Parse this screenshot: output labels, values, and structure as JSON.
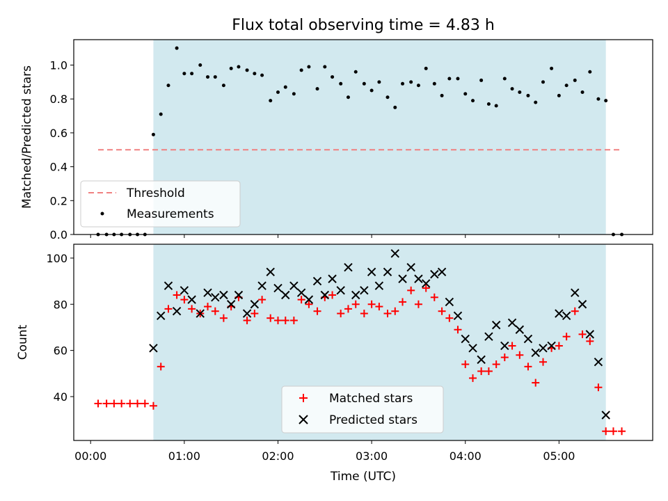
{
  "chart_data": {
    "title": "Flux total observing time = 4.83 h",
    "xlabel": "Time (UTC)",
    "x_unit": "hours (UTC)",
    "xlim": [
      -0.18,
      6.0
    ],
    "x_ticks": [
      {
        "value": 0,
        "label": "00:00"
      },
      {
        "value": 1,
        "label": "01:00"
      },
      {
        "value": 2,
        "label": "02:00"
      },
      {
        "value": 3,
        "label": "03:00"
      },
      {
        "value": 4,
        "label": "04:00"
      },
      {
        "value": 5,
        "label": "05:00"
      }
    ],
    "observing_window": {
      "start": 0.67,
      "end": 5.5,
      "color": "#d2e9ef"
    },
    "top": {
      "type": "scatter",
      "ylabel": "Matched/Predicted stars",
      "ylim": [
        0,
        1.15
      ],
      "y_ticks": [
        0.0,
        0.2,
        0.4,
        0.6,
        0.8,
        1.0
      ],
      "y_tick_labels": [
        "0.0",
        "0.2",
        "0.4",
        "0.6",
        "0.8",
        "1.0"
      ],
      "threshold": {
        "name": "Threshold",
        "value": 0.5,
        "x_start": 0.08,
        "x_end": 5.67,
        "color": "#f08080"
      },
      "series": {
        "name": "Measurements",
        "color": "#000000",
        "x": [
          0.08,
          0.17,
          0.25,
          0.33,
          0.42,
          0.5,
          0.58,
          0.67,
          0.75,
          0.83,
          0.92,
          1.0,
          1.08,
          1.17,
          1.25,
          1.33,
          1.42,
          1.5,
          1.58,
          1.67,
          1.75,
          1.83,
          1.92,
          2.0,
          2.08,
          2.17,
          2.25,
          2.33,
          2.42,
          2.5,
          2.58,
          2.67,
          2.75,
          2.83,
          2.92,
          3.0,
          3.08,
          3.17,
          3.25,
          3.33,
          3.42,
          3.5,
          3.58,
          3.67,
          3.75,
          3.83,
          3.92,
          4.0,
          4.08,
          4.17,
          4.25,
          4.33,
          4.42,
          4.5,
          4.58,
          4.67,
          4.75,
          4.83,
          4.92,
          5.0,
          5.08,
          5.17,
          5.25,
          5.33,
          5.42,
          5.5,
          5.58,
          5.67
        ],
        "y": [
          0,
          0,
          0,
          0,
          0,
          0,
          0,
          0.59,
          0.71,
          0.88,
          1.1,
          0.95,
          0.95,
          1.0,
          0.93,
          0.93,
          0.88,
          0.98,
          0.99,
          0.97,
          0.95,
          0.94,
          0.79,
          0.84,
          0.87,
          0.83,
          0.97,
          0.99,
          0.86,
          0.99,
          0.93,
          0.89,
          0.81,
          0.96,
          0.89,
          0.85,
          0.9,
          0.81,
          0.75,
          0.89,
          0.9,
          0.88,
          0.98,
          0.89,
          0.82,
          0.92,
          0.92,
          0.83,
          0.79,
          0.91,
          0.77,
          0.76,
          0.92,
          0.86,
          0.84,
          0.82,
          0.78,
          0.9,
          0.98,
          0.82,
          0.88,
          0.91,
          0.84,
          0.96,
          0.8,
          0.79,
          0,
          0
        ]
      }
    },
    "bottom": {
      "type": "scatter",
      "ylabel": "Count",
      "ylim": [
        21,
        106
      ],
      "y_ticks": [
        40,
        60,
        80,
        100
      ],
      "y_tick_labels": [
        "40",
        "60",
        "80",
        "100"
      ],
      "series": [
        {
          "name": "Matched stars",
          "marker": "plus",
          "color": "#ff0000",
          "x": [
            0.08,
            0.17,
            0.25,
            0.33,
            0.42,
            0.5,
            0.58,
            0.67,
            0.75,
            0.83,
            0.92,
            1.0,
            1.08,
            1.17,
            1.25,
            1.33,
            1.42,
            1.5,
            1.58,
            1.67,
            1.75,
            1.83,
            1.92,
            2.0,
            2.08,
            2.17,
            2.25,
            2.33,
            2.42,
            2.5,
            2.58,
            2.67,
            2.75,
            2.83,
            2.92,
            3.0,
            3.08,
            3.17,
            3.25,
            3.33,
            3.42,
            3.5,
            3.58,
            3.67,
            3.75,
            3.83,
            3.92,
            4.0,
            4.08,
            4.17,
            4.25,
            4.33,
            4.42,
            4.5,
            4.58,
            4.67,
            4.75,
            4.83,
            4.92,
            5.0,
            5.08,
            5.17,
            5.25,
            5.33,
            5.42,
            5.5,
            5.58,
            5.67
          ],
          "y": [
            37,
            37,
            37,
            37,
            37,
            37,
            37,
            36,
            53,
            78,
            84,
            82,
            78,
            76,
            79,
            77,
            74,
            79,
            83,
            73,
            76,
            82,
            74,
            73,
            73,
            73,
            82,
            80,
            77,
            83,
            84,
            76,
            78,
            80,
            76,
            80,
            79,
            76,
            77,
            81,
            86,
            80,
            87,
            83,
            77,
            74,
            69,
            54,
            48,
            51,
            51,
            54,
            57,
            62,
            58,
            53,
            46,
            55,
            61,
            62,
            66,
            77,
            67,
            64,
            44,
            25,
            25,
            25
          ]
        },
        {
          "name": "Predicted stars",
          "marker": "x",
          "color": "#000000",
          "x": [
            0.67,
            0.75,
            0.83,
            0.92,
            1.0,
            1.08,
            1.17,
            1.25,
            1.33,
            1.42,
            1.5,
            1.58,
            1.67,
            1.75,
            1.83,
            1.92,
            2.0,
            2.08,
            2.17,
            2.25,
            2.33,
            2.42,
            2.5,
            2.58,
            2.67,
            2.75,
            2.83,
            2.92,
            3.0,
            3.08,
            3.17,
            3.25,
            3.33,
            3.42,
            3.5,
            3.58,
            3.67,
            3.75,
            3.83,
            3.92,
            4.0,
            4.08,
            4.17,
            4.25,
            4.33,
            4.42,
            4.5,
            4.58,
            4.67,
            4.75,
            4.83,
            4.92,
            5.0,
            5.08,
            5.17,
            5.25,
            5.33,
            5.42,
            5.5
          ],
          "y": [
            61,
            75,
            88,
            77,
            86,
            82,
            76,
            85,
            83,
            84,
            80,
            84,
            76,
            80,
            88,
            94,
            87,
            84,
            88,
            85,
            82,
            90,
            84,
            91,
            86,
            96,
            84,
            86,
            94,
            88,
            94,
            102,
            91,
            96,
            91,
            89,
            93,
            94,
            81,
            75,
            65,
            61,
            56,
            66,
            71,
            62,
            72,
            69,
            65,
            59,
            61,
            62,
            76,
            75,
            85,
            80,
            67,
            55,
            32
          ]
        }
      ]
    },
    "legends": {
      "top": [
        "Threshold",
        "Measurements"
      ],
      "bottom": [
        "Matched stars",
        "Predicted stars"
      ]
    }
  }
}
